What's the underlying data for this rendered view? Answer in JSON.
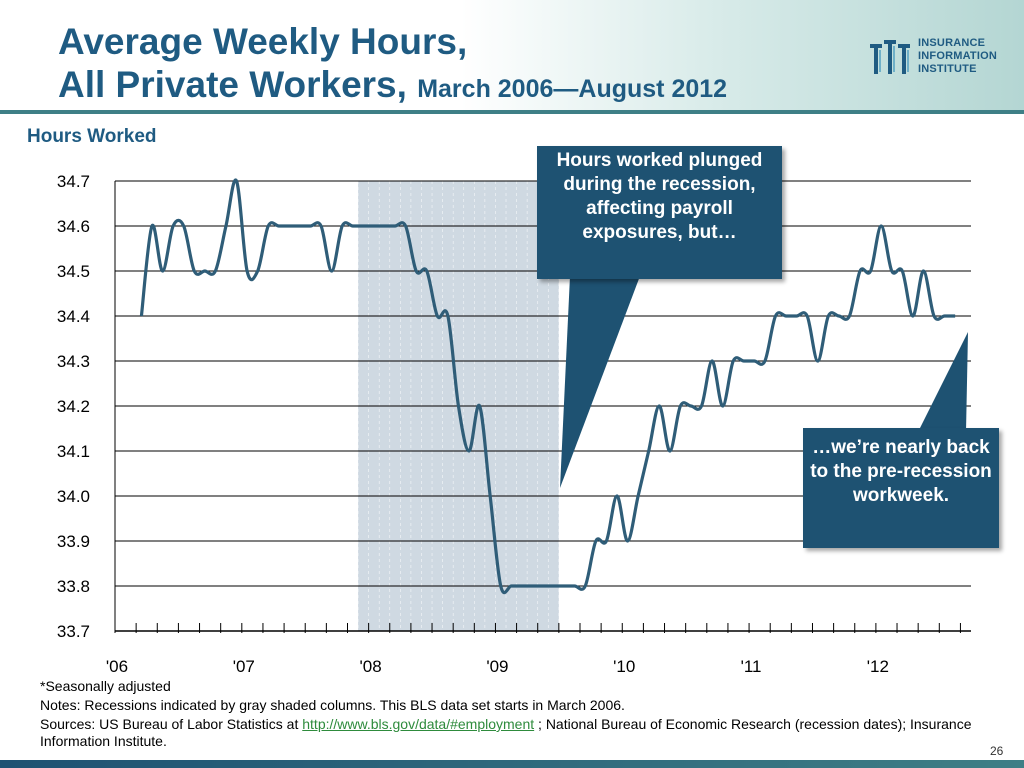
{
  "title": {
    "line1": "Average Weekly Hours,",
    "line2": "All Private Workers,",
    "subtitle": "March 2006—August 2012"
  },
  "logo": {
    "line1": "INSURANCE",
    "line2": "INFORMATION",
    "line3": "INSTITUTE",
    "icon": "iii-logo-icon"
  },
  "callouts": {
    "recession": "Hours worked plunged during the recession, affecting payroll exposures, but…",
    "recovery": "…we’re nearly back to the pre-recession workweek."
  },
  "notes": {
    "seasonal": "*Seasonally adjusted",
    "recession_note": "Notes: Recessions indicated by gray shaded columns. This BLS data set starts in March 2006.",
    "sources_prefix": "Sources: US Bureau of Labor Statistics at ",
    "sources_link": "http://www.bls.gov/data/#employment",
    "sources_suffix": ";   National Bureau of Economic Research (recession dates); Insurance Information Institute."
  },
  "page_number": "26",
  "colors": {
    "title": "#1f5b82",
    "line": "#2f5d78",
    "recession_shade": "#cfd9e2",
    "callout": "#1e5272"
  },
  "chart_data": {
    "type": "line",
    "ylabel": "Hours Worked",
    "ylim": [
      33.7,
      34.7
    ],
    "yticks": [
      "34.7",
      "34.6",
      "34.5",
      "34.4",
      "34.3",
      "34.2",
      "34.1",
      "34.0",
      "33.9",
      "33.8",
      "33.7"
    ],
    "xtick_labels": [
      "'06",
      "'07",
      "'08",
      "'09",
      "'10",
      "'11",
      "'12"
    ],
    "grid": "horizontal",
    "recession": {
      "start": "2007-12",
      "end": "2009-06"
    },
    "series": [
      {
        "x": [
          "2006-03",
          "2006-04",
          "2006-05",
          "2006-06",
          "2006-07",
          "2006-08",
          "2006-09",
          "2006-10",
          "2006-11",
          "2006-12",
          "2007-01",
          "2007-02",
          "2007-03",
          "2007-04",
          "2007-05",
          "2007-06",
          "2007-07",
          "2007-08",
          "2007-09",
          "2007-10",
          "2007-11",
          "2007-12",
          "2008-01",
          "2008-02",
          "2008-03",
          "2008-04",
          "2008-05",
          "2008-06",
          "2008-07",
          "2008-08",
          "2008-09",
          "2008-10",
          "2008-11",
          "2008-12",
          "2009-01",
          "2009-02",
          "2009-03",
          "2009-04",
          "2009-05",
          "2009-06",
          "2009-07",
          "2009-08",
          "2009-09",
          "2009-10",
          "2009-11",
          "2009-12",
          "2010-01",
          "2010-02",
          "2010-03",
          "2010-04",
          "2010-05",
          "2010-06",
          "2010-07",
          "2010-08",
          "2010-09",
          "2010-10",
          "2010-11",
          "2010-12",
          "2011-01",
          "2011-02",
          "2011-03",
          "2011-04",
          "2011-05",
          "2011-06",
          "2011-07",
          "2011-08",
          "2011-09",
          "2011-10",
          "2011-11",
          "2011-12",
          "2012-01",
          "2012-02",
          "2012-03",
          "2012-04",
          "2012-05",
          "2012-06",
          "2012-07",
          "2012-08"
        ],
        "values": [
          34.4,
          34.6,
          34.5,
          34.6,
          34.6,
          34.5,
          34.5,
          34.5,
          34.6,
          34.7,
          34.5,
          34.5,
          34.6,
          34.6,
          34.6,
          34.6,
          34.6,
          34.6,
          34.5,
          34.6,
          34.6,
          34.6,
          34.6,
          34.6,
          34.6,
          34.6,
          34.5,
          34.5,
          34.4,
          34.4,
          34.2,
          34.1,
          34.2,
          34.0,
          33.8,
          33.8,
          33.8,
          33.8,
          33.8,
          33.8,
          33.8,
          33.8,
          33.8,
          33.9,
          33.9,
          34.0,
          33.9,
          34.0,
          34.1,
          34.2,
          34.1,
          34.2,
          34.2,
          34.2,
          34.3,
          34.2,
          34.3,
          34.3,
          34.3,
          34.3,
          34.4,
          34.4,
          34.4,
          34.4,
          34.3,
          34.4,
          34.4,
          34.4,
          34.5,
          34.5,
          34.6,
          34.5,
          34.5,
          34.4,
          34.5,
          34.4,
          34.4,
          34.4
        ]
      }
    ]
  }
}
